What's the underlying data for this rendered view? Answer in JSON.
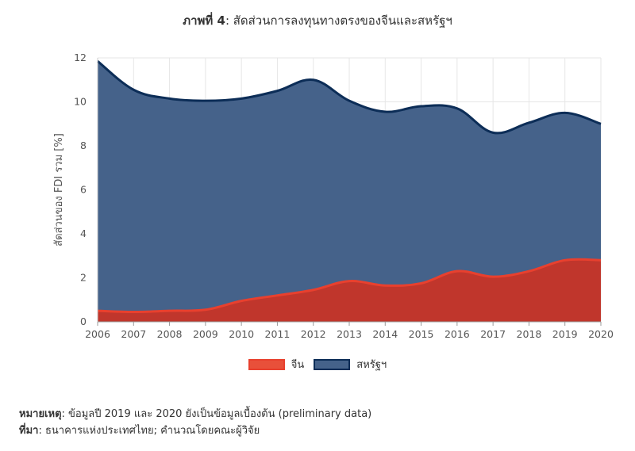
{
  "header": {
    "title_bold": "ภาพที่ 4",
    "title_rest": ": สัดส่วนการลงทุนทางตรงของจีนและสหรัฐฯ"
  },
  "chart_data": {
    "type": "area",
    "stacked": true,
    "title": "ภาพที่ 4: สัดส่วนการลงทุนทางตรงของจีนและสหรัฐฯ",
    "xlabel": "",
    "ylabel": "สัดส่วนของ FDI รวม [%]",
    "x": [
      2006,
      2007,
      2008,
      2009,
      2010,
      2011,
      2012,
      2013,
      2014,
      2015,
      2016,
      2017,
      2018,
      2019,
      2020
    ],
    "ylim": [
      0,
      12
    ],
    "yticks": [
      0,
      2,
      4,
      6,
      8,
      10,
      12
    ],
    "grid": true,
    "legend_position": "bottom",
    "series": [
      {
        "name": "จีน",
        "values": [
          0.5,
          0.45,
          0.5,
          0.55,
          0.95,
          1.2,
          1.45,
          1.85,
          1.65,
          1.75,
          2.3,
          2.05,
          2.3,
          2.8,
          2.8
        ],
        "fill": "#c0362c",
        "line": "#e8402e"
      },
      {
        "name": "สหรัฐฯ",
        "values": [
          11.85,
          10.55,
          10.15,
          10.05,
          10.15,
          10.5,
          11.0,
          10.05,
          9.55,
          9.8,
          9.7,
          8.6,
          9.05,
          9.5,
          9.0
        ],
        "fill": "#45628a",
        "line": "#0c2d57"
      }
    ]
  },
  "legend": {
    "items": [
      "จีน",
      "สหรัฐฯ"
    ]
  },
  "notes": {
    "remark_label": "หมายเหตุ",
    "remark_text": ": ข้อมูลปี 2019 และ 2020 ยังเป็นข้อมูลเบื้องต้น (preliminary data)",
    "source_label": "ที่มา",
    "source_text": ": ธนาคารแห่งประเทศไทย; คำนวณโดยคณะผู้วิจัย"
  }
}
